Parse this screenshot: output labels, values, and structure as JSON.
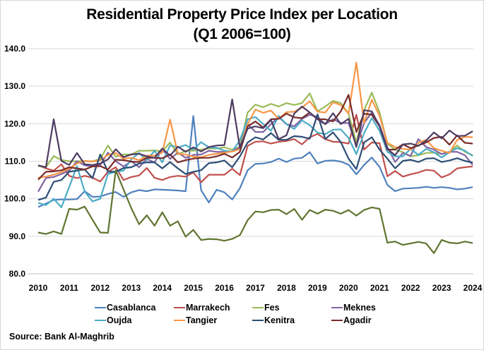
{
  "chart_data": {
    "type": "line",
    "title": "Residential Property Price Index per Location",
    "subtitle": "(Q1 2006=100)",
    "xlabel": "",
    "ylabel": "",
    "x_start": "2010 Q1",
    "x_end": "2024 Q1",
    "frequency": "quarterly",
    "xlim": [
      2010,
      2024
    ],
    "ylim": [
      80,
      140
    ],
    "x_ticks": [
      "2010",
      "2011",
      "2012",
      "2013",
      "2014",
      "2015",
      "2016",
      "2017",
      "2018",
      "2019",
      "2020",
      "2021",
      "2022",
      "2023",
      "2024"
    ],
    "y_ticks": [
      "80.0",
      "90.0",
      "100.0",
      "110.0",
      "120.0",
      "130.0",
      "140.0"
    ],
    "grid": "horizontal",
    "legend_position": "bottom",
    "series": [
      {
        "name": "Casablanca",
        "color": "#4F81BD",
        "values": [
          97.8,
          98.7,
          99.7,
          99.8,
          99.8,
          99.9,
          102.0,
          100.5,
          100.6,
          101.3,
          101.8,
          100.5,
          101.7,
          102.3,
          102.0,
          102.5,
          102.4,
          102.3,
          102.2,
          102.0,
          122.1,
          102.3,
          99.0,
          102.4,
          101.7,
          99.8,
          102.8,
          107.6,
          109.3,
          109.4,
          109.8,
          110.7,
          109.8,
          110.7,
          110.9,
          112.4,
          109.4,
          110.1,
          110.2,
          109.9,
          109.1,
          106.5,
          109.0,
          111.0,
          108.5,
          103.7,
          102.0,
          102.7,
          102.8,
          102.9,
          103.2,
          102.9,
          103.1,
          102.9,
          102.5,
          102.7,
          103.1
        ]
      },
      {
        "name": "Marrakech",
        "color": "#C0504D",
        "values": [
          108.9,
          108.1,
          107.5,
          109.2,
          106.1,
          105.5,
          106.1,
          105.6,
          104.6,
          107.2,
          108.4,
          105.0,
          105.8,
          106.2,
          108.2,
          105.6,
          105.0,
          105.8,
          106.1,
          105.9,
          107.0,
          104.4,
          106.4,
          106.4,
          106.4,
          108.0,
          106.3,
          114.1,
          115.2,
          115.3,
          114.7,
          115.2,
          115.4,
          115.9,
          114.5,
          116.4,
          117.3,
          115.9,
          115.2,
          115.1,
          114.7,
          122.4,
          113.1,
          115.0,
          114.8,
          106.0,
          107.4,
          105.9,
          106.5,
          107.0,
          107.7,
          107.5,
          105.7,
          106.5,
          108.1,
          108.4,
          108.6
        ]
      },
      {
        "name": "Fes",
        "color": "#9BBB59",
        "values": [
          108.7,
          108.4,
          111.4,
          110.3,
          110.0,
          110.0,
          110.0,
          110.0,
          110.6,
          114.2,
          111.2,
          111.8,
          111.8,
          112.8,
          112.8,
          112.9,
          112.6,
          115.0,
          111.8,
          112.8,
          112.8,
          113.1,
          113.4,
          113.4,
          113.7,
          113.1,
          113.8,
          123.0,
          125.1,
          124.4,
          125.3,
          124.6,
          125.5,
          125.0,
          125.5,
          128.1,
          123.3,
          124.6,
          126.1,
          125.5,
          122.7,
          115.0,
          123.6,
          128.3,
          123.0,
          114.7,
          113.1,
          112.4,
          111.3,
          111.6,
          112.2,
          112.3,
          112.0,
          112.4,
          114.2,
          112.5,
          111.6
        ]
      },
      {
        "name": "Meknes",
        "color": "#8064A2",
        "values": [
          101.9,
          105.5,
          105.8,
          106.6,
          107.5,
          110.0,
          108.9,
          108.6,
          109.0,
          112.3,
          110.0,
          108.6,
          110.0,
          108.4,
          110.6,
          109.7,
          113.2,
          110.6,
          112.3,
          110.9,
          111.7,
          111.8,
          112.8,
          112.5,
          112.5,
          112.6,
          113.7,
          119.9,
          117.8,
          117.8,
          119.9,
          121.8,
          119.9,
          119.3,
          121.3,
          122.4,
          121.8,
          119.9,
          121.2,
          120.2,
          120.2,
          114.1,
          120.2,
          123.0,
          119.6,
          113.8,
          109.8,
          112.2,
          111.4,
          115.9,
          113.8,
          113.1,
          111.9,
          112.5,
          112.5,
          111.6,
          109.0
        ]
      },
      {
        "name": "Oujda",
        "color": "#4BACC6",
        "values": [
          98.9,
          98.3,
          100.0,
          97.7,
          103.1,
          108.7,
          101.9,
          99.3,
          100.0,
          106.6,
          107.2,
          107.5,
          110.5,
          112.2,
          110.3,
          112.8,
          109.7,
          114.2,
          113.7,
          114.3,
          113.1,
          115.1,
          113.7,
          113.6,
          112.8,
          112.6,
          115.6,
          121.2,
          121.8,
          119.9,
          118.1,
          122.1,
          119.9,
          118.6,
          120.9,
          119.6,
          117.6,
          117.2,
          118.4,
          118.5,
          116.2,
          111.9,
          117.5,
          121.5,
          118.1,
          112.5,
          111.3,
          111.3,
          113.3,
          111.7,
          113.3,
          112.4,
          111.0,
          112.4,
          113.5,
          112.8,
          111.4
        ]
      },
      {
        "name": "Tangier",
        "color": "#F79646",
        "values": [
          105.6,
          105.9,
          106.4,
          107.1,
          108.0,
          109.4,
          110.1,
          109.9,
          110.3,
          111.7,
          112.2,
          110.7,
          110.9,
          110.3,
          111.5,
          111.5,
          112.3,
          121.1,
          112.0,
          111.8,
          111.2,
          111.1,
          111.7,
          112.0,
          112.3,
          112.6,
          113.2,
          119.9,
          123.8,
          122.9,
          123.5,
          121.3,
          123.1,
          123.2,
          124.3,
          126.0,
          123.2,
          123.0,
          125.7,
          125.0,
          122.7,
          136.3,
          120.2,
          126.4,
          122.1,
          114.9,
          113.8,
          113.3,
          113.1,
          114.9,
          115.7,
          113.5,
          112.8,
          112.2,
          115.7,
          116.5,
          116.4
        ]
      },
      {
        "name": "Kenitra",
        "color": "#2C4D75",
        "values": [
          99.7,
          100.3,
          104.5,
          105.0,
          107.2,
          107.5,
          107.8,
          105.5,
          111.8,
          107.2,
          107.2,
          108.2,
          108.4,
          109.4,
          109.7,
          109.7,
          108.1,
          109.8,
          108.1,
          106.6,
          107.2,
          107.6,
          109.5,
          109.7,
          110.2,
          108.4,
          111.3,
          115.0,
          116.4,
          115.8,
          117.5,
          115.7,
          115.7,
          116.7,
          116.5,
          116.0,
          122.5,
          115.9,
          117.7,
          115.1,
          110.7,
          107.9,
          115.0,
          116.4,
          113.1,
          110.7,
          108.1,
          110.1,
          110.4,
          109.8,
          110.7,
          110.8,
          109.8,
          110.2,
          110.8,
          110.1,
          109.6
        ]
      },
      {
        "name": "Agadir",
        "color": "#772C2A",
        "values": [
          105.1,
          107.2,
          107.3,
          107.6,
          108.4,
          108.1,
          107.8,
          108.6,
          108.7,
          107.8,
          110.4,
          110.3,
          109.9,
          109.8,
          110.9,
          110.9,
          110.8,
          111.8,
          109.7,
          110.3,
          110.7,
          110.9,
          110.9,
          111.3,
          112.0,
          111.0,
          112.5,
          119.3,
          120.6,
          119.0,
          121.2,
          121.3,
          122.7,
          121.7,
          121.5,
          123.0,
          121.2,
          121.2,
          120.6,
          123.3,
          127.7,
          117.8,
          122.7,
          122.4,
          119.3,
          113.1,
          113.1,
          114.5,
          113.5,
          114.2,
          115.0,
          116.2,
          116.5,
          114.4,
          116.9,
          114.9,
          114.7
        ]
      },
      {
        "name": "",
        "color": "#5F7530",
        "values": [
          91.0,
          90.6,
          91.3,
          90.6,
          97.3,
          97.1,
          97.9,
          94.4,
          91.0,
          90.9,
          107.6,
          102.5,
          97.5,
          93.2,
          95.6,
          92.8,
          96.4,
          92.8,
          94.0,
          89.9,
          91.7,
          89.0,
          89.3,
          89.2,
          88.8,
          89.3,
          90.3,
          94.3,
          96.6,
          96.4,
          97.0,
          97.1,
          95.9,
          97.3,
          94.4,
          97.0,
          96.0,
          97.1,
          96.8,
          96.0,
          97.0,
          95.5,
          97.0,
          97.7,
          97.3,
          88.3,
          88.6,
          87.7,
          88.1,
          88.5,
          88.1,
          85.5,
          89.0,
          88.3,
          88.1,
          88.6,
          88.2
        ]
      },
      {
        "name": "",
        "color": "#4D3B62",
        "values": [
          108.9,
          108.4,
          121.2,
          110.1,
          109.0,
          112.2,
          109.2,
          109.0,
          109.4,
          110.5,
          113.2,
          111.1,
          111.8,
          112.0,
          111.3,
          110.9,
          113.4,
          111.5,
          113.9,
          112.5,
          113.7,
          112.6,
          113.8,
          114.2,
          114.3,
          126.5,
          113.6,
          118.7,
          119.3,
          118.8,
          121.0,
          115.9,
          116.9,
          122.7,
          124.6,
          123.0,
          121.2,
          119.9,
          122.8,
          119.9,
          121.3,
          113.8,
          123.6,
          123.3,
          119.3,
          113.3,
          111.6,
          114.5,
          114.7,
          114.1,
          115.5,
          117.7,
          116.1,
          118.2,
          116.7,
          116.8,
          118.0
        ]
      }
    ],
    "source": "Source: Bank Al-Maghrib"
  }
}
